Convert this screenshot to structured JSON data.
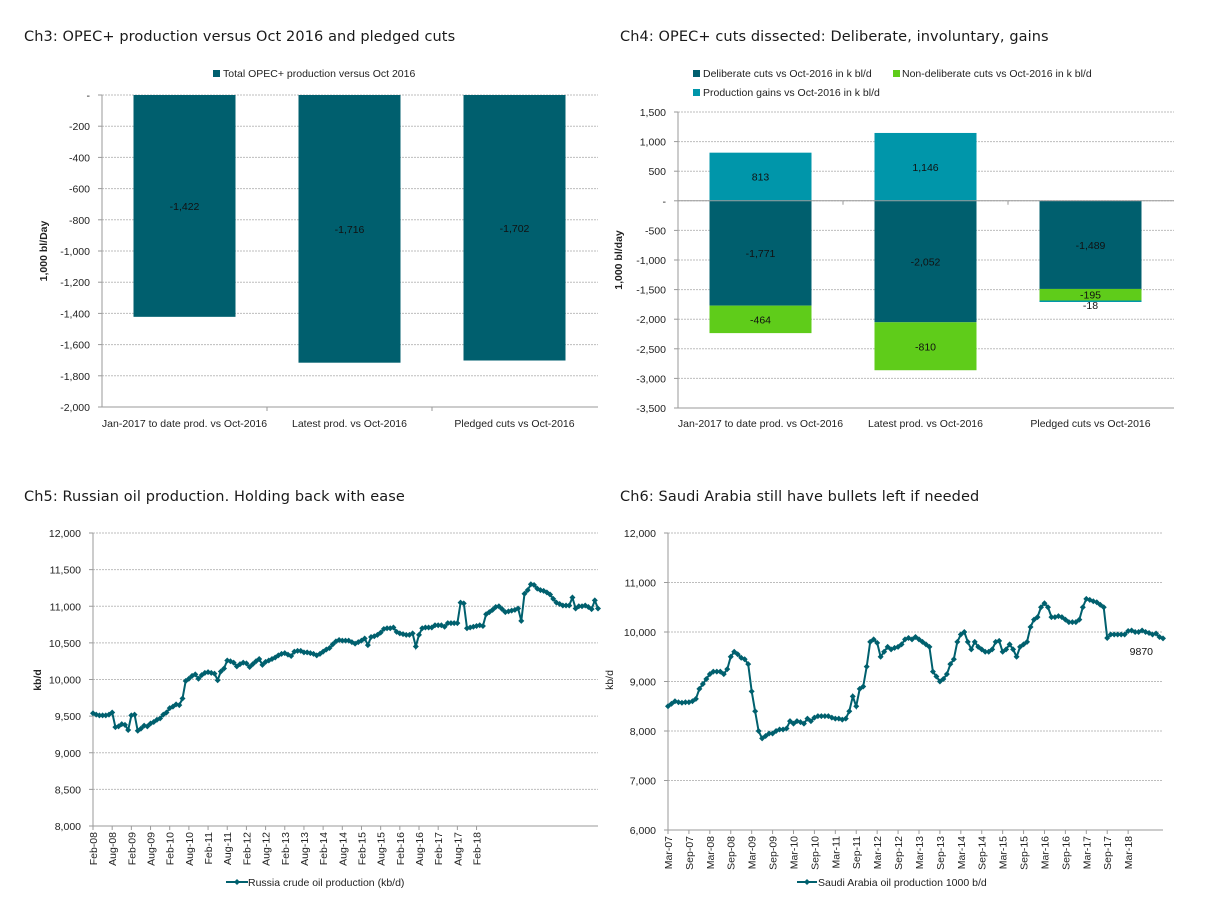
{
  "colors": {
    "dark_teal": "#005f6e",
    "light_teal": "#0096aa",
    "green": "#5fcc1a",
    "line": "#00606e"
  },
  "chart_data": [
    {
      "id": "ch3",
      "type": "bar",
      "title": "Ch3: OPEC+ production versus Oct 2016 and pledged cuts",
      "legend": [
        "Total OPEC+ production versus Oct 2016"
      ],
      "legend_position": "top",
      "categories": [
        "Jan-2017 to date prod. vs Oct-2016",
        "Latest prod. vs Oct-2016",
        "Pledged cuts vs Oct-2016"
      ],
      "series": [
        {
          "name": "Total OPEC+ production versus Oct 2016",
          "values": [
            -1422,
            -1716,
            -1702
          ]
        }
      ],
      "data_labels": [
        "-1,422",
        "-1,716",
        "-1,702"
      ],
      "xlabel": "",
      "ylabel": "1,000 bl/Day",
      "ylim": [
        -2000,
        0
      ],
      "yticks": [
        0,
        -200,
        -400,
        -600,
        -800,
        -1000,
        -1200,
        -1400,
        -1600,
        -1800,
        -2000
      ],
      "ytick_labels": [
        "-",
        "-200",
        "-400",
        "-600",
        "-800",
        "-1,000",
        "-1,200",
        "-1,400",
        "-1,600",
        "-1,800",
        "-2,000"
      ],
      "grid": true
    },
    {
      "id": "ch4",
      "type": "bar",
      "stacked": true,
      "title": "Ch4: OPEC+ cuts dissected: Deliberate, involuntary, gains",
      "legend": [
        "Deliberate cuts vs Oct-2016 in k bl/d",
        "Non-deliberate cuts vs Oct-2016 in k bl/d",
        "Production gains vs Oct-2016 in k bl/d"
      ],
      "legend_position": "top",
      "categories": [
        "Jan-2017 to date prod. vs Oct-2016",
        "Latest prod. vs Oct-2016",
        "Pledged cuts vs Oct-2016"
      ],
      "series": [
        {
          "name": "Deliberate cuts vs Oct-2016 in k bl/d",
          "values": [
            -1771,
            -2052,
            -1489
          ],
          "labels": [
            "-1,771",
            "-2,052",
            "-1,489"
          ]
        },
        {
          "name": "Non-deliberate cuts vs Oct-2016 in k bl/d",
          "values": [
            -464,
            -810,
            -195
          ],
          "labels": [
            "-464",
            "-810",
            "-195"
          ]
        },
        {
          "name": "Production gains vs Oct-2016 in k bl/d",
          "values": [
            813,
            1146,
            -18
          ],
          "labels": [
            "813",
            "1,146",
            "-18"
          ]
        }
      ],
      "xlabel": "",
      "ylabel": "1,000 bl/day",
      "ylim": [
        -3500,
        1500
      ],
      "yticks": [
        1500,
        1000,
        500,
        0,
        -500,
        -1000,
        -1500,
        -2000,
        -2500,
        -3000,
        -3500
      ],
      "ytick_labels": [
        "1,500",
        "1,000",
        "500",
        "-",
        "-500",
        "-1,000",
        "-1,500",
        "-2,000",
        "-2,500",
        "-3,000",
        "-3,500"
      ],
      "grid": true
    },
    {
      "id": "ch5",
      "type": "line",
      "title": "Ch5: Russian oil production. Holding back with ease",
      "legend": [
        "Russia crude oil production (kb/d)"
      ],
      "legend_position": "bottom",
      "x_start": "Feb-08",
      "x_end": "Feb-18",
      "x_frequency": "monthly",
      "xtick_labels": [
        "Feb-08",
        "Aug-08",
        "Feb-09",
        "Aug-09",
        "Feb-10",
        "Aug-10",
        "Feb-11",
        "Aug-11",
        "Feb-12",
        "Aug-12",
        "Feb-13",
        "Aug-13",
        "Feb-14",
        "Aug-14",
        "Feb-15",
        "Aug-15",
        "Feb-16",
        "Aug-16",
        "Feb-17",
        "Aug-17",
        "Feb-18"
      ],
      "series": [
        {
          "name": "Russia crude oil production (kb/d)",
          "values": [
            9540,
            9520,
            9510,
            9510,
            9510,
            9520,
            9550,
            9350,
            9360,
            9390,
            9380,
            9310,
            9510,
            9520,
            9300,
            9330,
            9370,
            9360,
            9400,
            9420,
            9450,
            9470,
            9520,
            9550,
            9610,
            9630,
            9660,
            9650,
            9740,
            9980,
            10010,
            10050,
            10070,
            10010,
            10060,
            10090,
            10100,
            10090,
            10080,
            9990,
            10110,
            10150,
            10260,
            10250,
            10230,
            10180,
            10210,
            10230,
            10220,
            10170,
            10210,
            10250,
            10280,
            10200,
            10240,
            10260,
            10280,
            10300,
            10330,
            10350,
            10360,
            10340,
            10320,
            10380,
            10390,
            10390,
            10370,
            10370,
            10360,
            10350,
            10330,
            10350,
            10380,
            10410,
            10430,
            10480,
            10520,
            10540,
            10530,
            10530,
            10530,
            10510,
            10490,
            10510,
            10530,
            10560,
            10470,
            10580,
            10590,
            10610,
            10640,
            10690,
            10700,
            10700,
            10710,
            10650,
            10630,
            10620,
            10610,
            10610,
            10630,
            10450,
            10610,
            10700,
            10710,
            10710,
            10710,
            10740,
            10740,
            10740,
            10720,
            10770,
            10770,
            10770,
            10770,
            11050,
            11040,
            10700,
            10710,
            10720,
            10730,
            10740,
            10730,
            10890,
            10920,
            10950,
            10990,
            11000,
            10960,
            10920,
            10930,
            10940,
            10950,
            10970,
            10800,
            11170,
            11220,
            11300,
            11290,
            11240,
            11220,
            11210,
            11190,
            11160,
            11100,
            11050,
            11030,
            11010,
            11010,
            11010,
            11120,
            10970,
            11000,
            11000,
            11010,
            10990,
            10960,
            11080,
            10970
          ]
        }
      ],
      "xlabel": "",
      "ylabel": "kb/d",
      "ylim": [
        8000,
        12000
      ],
      "yticks": [
        12000,
        11500,
        11000,
        10500,
        10000,
        9500,
        9000,
        8500,
        8000
      ],
      "ytick_labels": [
        "12,000",
        "11,500",
        "11,000",
        "10,500",
        "10,000",
        "9,500",
        "9,000",
        "8,500",
        "8,000"
      ],
      "grid": true
    },
    {
      "id": "ch6",
      "type": "line",
      "title": "Ch6: Saudi Arabia still have bullets left if needed",
      "legend": [
        "Saudi Arabia oil production 1000 b/d"
      ],
      "legend_position": "bottom",
      "x_start": "Mar-07",
      "x_end": "Mar-18",
      "x_frequency": "monthly",
      "xtick_labels": [
        "Mar-07",
        "Sep-07",
        "Mar-08",
        "Sep-08",
        "Mar-09",
        "Sep-09",
        "Mar-10",
        "Sep-10",
        "Mar-11",
        "Sep-11",
        "Mar-12",
        "Sep-12",
        "Mar-13",
        "Sep-13",
        "Mar-14",
        "Sep-14",
        "Mar-15",
        "Sep-15",
        "Mar-16",
        "Sep-16",
        "Mar-17",
        "Sep-17",
        "Mar-18"
      ],
      "annotation": "9870",
      "series": [
        {
          "name": "Saudi Arabia oil production 1000 b/d",
          "values": [
            8500,
            8550,
            8600,
            8580,
            8570,
            8580,
            8580,
            8600,
            8650,
            8850,
            8950,
            9050,
            9150,
            9200,
            9200,
            9200,
            9150,
            9250,
            9500,
            9600,
            9550,
            9480,
            9450,
            9350,
            8800,
            8400,
            8000,
            7850,
            7900,
            7950,
            7950,
            8000,
            8030,
            8030,
            8050,
            8200,
            8150,
            8200,
            8180,
            8150,
            8250,
            8200,
            8270,
            8300,
            8300,
            8300,
            8300,
            8270,
            8250,
            8250,
            8230,
            8250,
            8400,
            8700,
            8500,
            8850,
            8900,
            9300,
            9800,
            9850,
            9780,
            9500,
            9600,
            9700,
            9650,
            9680,
            9700,
            9750,
            9850,
            9880,
            9850,
            9900,
            9850,
            9800,
            9750,
            9700,
            9200,
            9100,
            9000,
            9050,
            9150,
            9350,
            9450,
            9800,
            9950,
            10000,
            9800,
            9650,
            9800,
            9700,
            9650,
            9600,
            9600,
            9650,
            9800,
            9820,
            9600,
            9650,
            9750,
            9650,
            9500,
            9700,
            9750,
            9800,
            10100,
            10250,
            10300,
            10500,
            10580,
            10500,
            10300,
            10300,
            10320,
            10300,
            10250,
            10200,
            10200,
            10200,
            10250,
            10500,
            10670,
            10650,
            10620,
            10600,
            10550,
            10500,
            9880,
            9950,
            9950,
            9950,
            9950,
            9950,
            10020,
            10030,
            10000,
            10000,
            10030,
            10000,
            9980,
            9950,
            9970,
            9900,
            9870
          ]
        }
      ],
      "xlabel": "",
      "ylabel": "kb/d",
      "ylim": [
        6000,
        12000
      ],
      "yticks": [
        12000,
        11000,
        10000,
        9000,
        8000,
        7000,
        6000
      ],
      "ytick_labels": [
        "12,000",
        "11,000",
        "10,000",
        "9,000",
        "8,000",
        "7,000",
        "6,000"
      ],
      "grid": true
    }
  ]
}
